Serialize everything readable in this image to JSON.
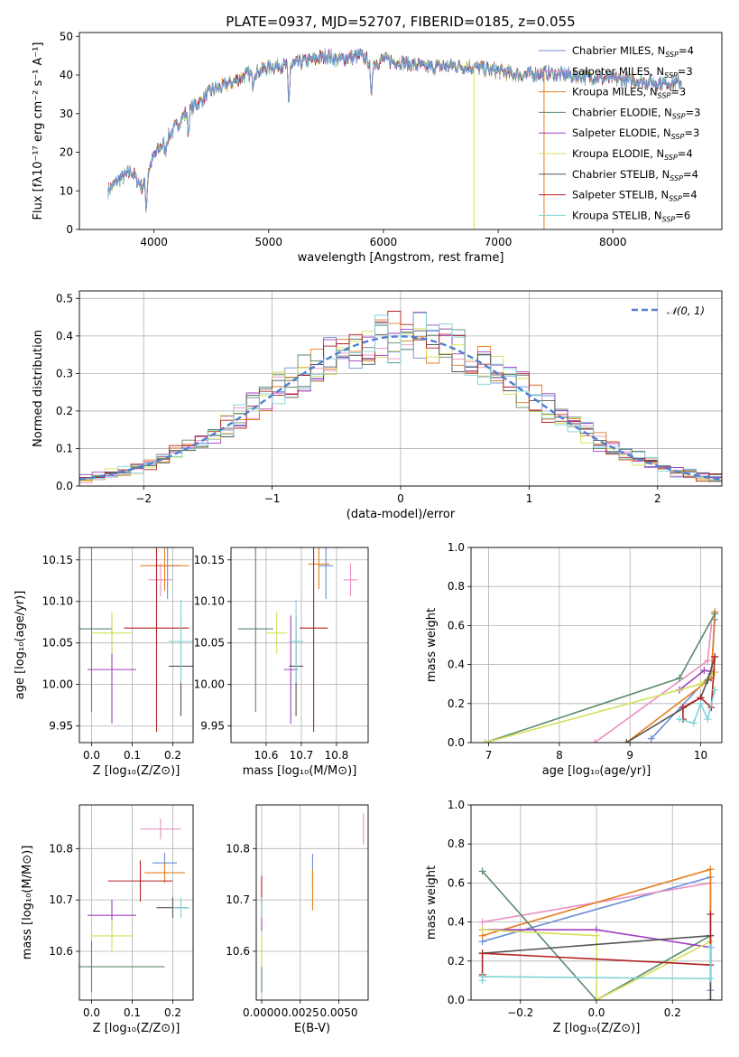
{
  "figure": {
    "title": "PLATE=0937, MJD=52707, FIBERID=0185, z=0.055"
  },
  "chart_data": [
    {
      "type": "line",
      "id": "spectrum",
      "xlabel": "wavelength [Angstrom, rest frame]",
      "ylabel": "Flux [fλ10⁻¹⁷ erg cm⁻² s⁻¹ A⁻¹]",
      "xlim": [
        3350,
        8950
      ],
      "ylim": [
        0,
        51
      ],
      "xticks": [
        4000,
        5000,
        6000,
        7000,
        8000
      ],
      "yticks": [
        0,
        10,
        20,
        30,
        40,
        50
      ],
      "grid": false,
      "legend_position": "upper-right",
      "continuum": {
        "x": [
          3600,
          3700,
          3800,
          3900,
          4000,
          4100,
          4200,
          4300,
          4400,
          4500,
          4600,
          4700,
          4800,
          4900,
          5000,
          5100,
          5200,
          5300,
          5400,
          5500,
          5600,
          5700,
          5800,
          5900,
          6000,
          6200,
          6400,
          6600,
          6800,
          7000,
          7200,
          7400,
          7600,
          7800,
          8000,
          8200,
          8400,
          8600
        ],
        "y": [
          10,
          13,
          15,
          11,
          19,
          23,
          27,
          31,
          33,
          36,
          37,
          38.5,
          40,
          41,
          42,
          42.5,
          42.5,
          43.5,
          44,
          45,
          44,
          44.5,
          45,
          43,
          44,
          43,
          42,
          42.5,
          42,
          41,
          40,
          40.5,
          40,
          39.5,
          39,
          38.5,
          38,
          38
        ]
      },
      "absorption_features": [
        {
          "x": 3933,
          "depth": 8
        },
        {
          "x": 4101,
          "depth": 3
        },
        {
          "x": 4300,
          "depth": 6
        },
        {
          "x": 4861,
          "depth": 3
        },
        {
          "x": 5175,
          "depth": 10
        },
        {
          "x": 5893,
          "depth": 9
        }
      ],
      "spikes": [
        {
          "series": "Kroupa ELODIE",
          "x": 6790,
          "to": 0
        },
        {
          "series": "Kroupa MILES",
          "x": 7400,
          "to": 0
        }
      ],
      "series": [
        {
          "name": "Chabrier MILES",
          "sub": "SSP",
          "suffix": "=4",
          "color": "#6a8ed6"
        },
        {
          "name": "Salpeter MILES",
          "sub": "SSP",
          "suffix": "=3",
          "color": "#e98fc3"
        },
        {
          "name": "Kroupa MILES",
          "sub": "SSP",
          "suffix": "=3",
          "color": "#e67e22"
        },
        {
          "name": "Chabrier ELODIE",
          "sub": "SSP",
          "suffix": "=3",
          "color": "#5a8a6a"
        },
        {
          "name": "Salpeter ELODIE",
          "sub": "SSP",
          "suffix": "=3",
          "color": "#a03fc0"
        },
        {
          "name": "Kroupa ELODIE",
          "sub": "SSP",
          "suffix": "=4",
          "color": "#d4e157"
        },
        {
          "name": "Chabrier STELIB",
          "sub": "SSP",
          "suffix": "=4",
          "color": "#555555"
        },
        {
          "name": "Salpeter STELIB",
          "sub": "SSP",
          "suffix": "=4",
          "color": "#b22222"
        },
        {
          "name": "Kroupa STELIB",
          "sub": "SSP",
          "suffix": "=6",
          "color": "#7fd3d8"
        }
      ]
    },
    {
      "type": "histogram",
      "id": "residuals",
      "xlabel": "(data-model)/error",
      "ylabel": "Normed distribution",
      "xlim": [
        -2.5,
        2.5
      ],
      "ylim": [
        0,
        0.52
      ],
      "xticks": [
        -2,
        -1,
        0,
        1,
        2
      ],
      "yticks": [
        0.0,
        0.1,
        0.2,
        0.3,
        0.4,
        0.5
      ],
      "grid": true,
      "bin_width": 0.1,
      "reference": {
        "label": "𝒩(0, 1)",
        "mean": 0,
        "sigma": 1,
        "color": "#4f7fd1",
        "style": "dashed"
      },
      "legend_position": "upper-right"
    },
    {
      "type": "scatter",
      "id": "age-vs-Z",
      "xlabel": "Z [log₁₀(Z/Z⊙)]",
      "ylabel": "age  [log₁₀(age/yr)]",
      "xlim": [
        -0.03,
        0.25
      ],
      "ylim": [
        9.93,
        10.165
      ],
      "xticks": [
        0.0,
        0.1,
        0.2
      ],
      "yticks": [
        9.95,
        10.0,
        10.05,
        10.1,
        10.15
      ],
      "grid": true,
      "points": [
        {
          "series": "Chabrier MILES",
          "x": 0.187,
          "y": 10.143,
          "xerr": 0.03,
          "yerr": 0.04
        },
        {
          "series": "Salpeter MILES",
          "x": 0.17,
          "y": 10.126,
          "xerr": 0.03,
          "yerr": 0.02
        },
        {
          "series": "Kroupa MILES",
          "x": 0.18,
          "y": 10.143,
          "xerr": 0.06,
          "yerr": 0.03
        },
        {
          "series": "Chabrier ELODIE",
          "x": 0.0,
          "y": 10.067,
          "xerr": 0.05,
          "yerr": 0.1
        },
        {
          "series": "Salpeter ELODIE",
          "x": 0.05,
          "y": 10.018,
          "xerr": 0.06,
          "yerr": 0.065
        },
        {
          "series": "Kroupa ELODIE",
          "x": 0.05,
          "y": 10.062,
          "xerr": 0.05,
          "yerr": 0.025
        },
        {
          "series": "Chabrier STELIB",
          "x": 0.22,
          "y": 10.022,
          "xerr": 0.03,
          "yerr": 0.06
        },
        {
          "series": "Salpeter STELIB",
          "x": 0.16,
          "y": 10.068,
          "xerr": 0.08,
          "yerr": 0.125
        },
        {
          "series": "Kroupa STELIB",
          "x": 0.22,
          "y": 10.052,
          "xerr": 0.03,
          "yerr": 0.05
        }
      ]
    },
    {
      "type": "scatter",
      "id": "age-vs-mass",
      "xlabel": "mass [log₁₀(M/M⊙)]",
      "ylabel": "",
      "xlim": [
        10.5,
        10.89
      ],
      "ylim": [
        9.93,
        10.165
      ],
      "xticks": [
        10.6,
        10.7,
        10.8
      ],
      "yticks": [
        9.95,
        10.0,
        10.05,
        10.1,
        10.15
      ],
      "grid": true,
      "points": [
        {
          "series": "Chabrier MILES",
          "x": 10.77,
          "y": 10.143,
          "xerr": 0.02,
          "yerr": 0.04
        },
        {
          "series": "Salpeter MILES",
          "x": 10.84,
          "y": 10.126,
          "xerr": 0.02,
          "yerr": 0.02
        },
        {
          "series": "Kroupa MILES",
          "x": 10.75,
          "y": 10.145,
          "xerr": 0.03,
          "yerr": 0.03
        },
        {
          "series": "Chabrier ELODIE",
          "x": 10.57,
          "y": 10.067,
          "xerr": 0.05,
          "yerr": 0.1
        },
        {
          "series": "Salpeter ELODIE",
          "x": 10.67,
          "y": 10.018,
          "xerr": 0.02,
          "yerr": 0.065
        },
        {
          "series": "Kroupa ELODIE",
          "x": 10.63,
          "y": 10.062,
          "xerr": 0.03,
          "yerr": 0.025
        },
        {
          "series": "Chabrier STELIB",
          "x": 10.685,
          "y": 10.022,
          "xerr": 0.02,
          "yerr": 0.06
        },
        {
          "series": "Salpeter STELIB",
          "x": 10.735,
          "y": 10.068,
          "xerr": 0.04,
          "yerr": 0.125
        },
        {
          "series": "Kroupa STELIB",
          "x": 10.685,
          "y": 10.052,
          "xerr": 0.02,
          "yerr": 0.05
        }
      ]
    },
    {
      "type": "line",
      "id": "weight-vs-age",
      "xlabel": "age  [log₁₀(age/yr)]",
      "ylabel": "mass weight",
      "xlim": [
        6.75,
        10.3
      ],
      "ylim": [
        0,
        1.0
      ],
      "xticks": [
        7,
        8,
        9,
        10
      ],
      "yticks": [
        0.0,
        0.2,
        0.4,
        0.6,
        0.8,
        1.0
      ],
      "grid": true,
      "series": [
        {
          "name": "Chabrier MILES",
          "points": [
            [
              9.3,
              0.02
            ],
            [
              10.15,
              0.35
            ],
            [
              10.2,
              0.63
            ]
          ]
        },
        {
          "name": "Salpeter MILES",
          "points": [
            [
              8.5,
              0.0
            ],
            [
              10.1,
              0.42
            ],
            [
              10.15,
              0.6
            ]
          ]
        },
        {
          "name": "Kroupa MILES",
          "points": [
            [
              8.95,
              0.0
            ],
            [
              10.15,
              0.33
            ],
            [
              10.2,
              0.67
            ]
          ]
        },
        {
          "name": "Chabrier ELODIE",
          "points": [
            [
              6.95,
              0.0
            ],
            [
              9.7,
              0.33
            ],
            [
              10.2,
              0.66
            ]
          ]
        },
        {
          "name": "Salpeter ELODIE",
          "points": [
            [
              9.7,
              0.27
            ],
            [
              10.05,
              0.37
            ],
            [
              10.2,
              0.36
            ]
          ]
        },
        {
          "name": "Kroupa ELODIE",
          "points": [
            [
              6.95,
              0.0
            ],
            [
              10.0,
              0.3
            ],
            [
              10.2,
              0.36
            ]
          ]
        },
        {
          "name": "Chabrier STELIB",
          "points": [
            [
              8.95,
              0.0
            ],
            [
              10.0,
              0.23
            ],
            [
              10.1,
              0.32
            ],
            [
              10.2,
              0.44
            ]
          ]
        },
        {
          "name": "Salpeter STELIB",
          "points": [
            [
              9.75,
              0.12
            ],
            [
              9.75,
              0.18
            ],
            [
              10.0,
              0.23
            ],
            [
              10.15,
              0.18
            ],
            [
              10.2,
              0.44
            ]
          ]
        },
        {
          "name": "Kroupa STELIB",
          "points": [
            [
              9.7,
              0.12
            ],
            [
              9.9,
              0.1
            ],
            [
              10.0,
              0.2
            ],
            [
              10.1,
              0.12
            ],
            [
              10.2,
              0.27
            ]
          ]
        }
      ]
    },
    {
      "type": "scatter",
      "id": "mass-vs-Z",
      "xlabel": "Z [log₁₀(Z/Z⊙)]",
      "ylabel": "mass [log₁₀(M/M⊙)]",
      "xlim": [
        -0.03,
        0.25
      ],
      "ylim": [
        10.505,
        10.885
      ],
      "xticks": [
        0.0,
        0.1,
        0.2
      ],
      "yticks": [
        10.6,
        10.7,
        10.8
      ],
      "grid": true,
      "points": [
        {
          "series": "Chabrier MILES",
          "x": 0.18,
          "y": 10.772,
          "xerr": 0.03,
          "yerr": 0.02
        },
        {
          "series": "Salpeter MILES",
          "x": 0.17,
          "y": 10.838,
          "xerr": 0.05,
          "yerr": 0.02
        },
        {
          "series": "Kroupa MILES",
          "x": 0.18,
          "y": 10.753,
          "xerr": 0.05,
          "yerr": 0.02
        },
        {
          "series": "Chabrier ELODIE",
          "x": 0.0,
          "y": 10.57,
          "xerr": 0.18,
          "yerr": 0.05
        },
        {
          "series": "Salpeter ELODIE",
          "x": 0.05,
          "y": 10.67,
          "xerr": 0.06,
          "yerr": 0.03
        },
        {
          "series": "Kroupa ELODIE",
          "x": 0.05,
          "y": 10.63,
          "xerr": 0.05,
          "yerr": 0.03
        },
        {
          "series": "Chabrier STELIB",
          "x": 0.2,
          "y": 10.685,
          "xerr": 0.04,
          "yerr": 0.02
        },
        {
          "series": "Salpeter STELIB",
          "x": 0.12,
          "y": 10.737,
          "xerr": 0.08,
          "yerr": 0.04
        },
        {
          "series": "Kroupa STELIB",
          "x": 0.22,
          "y": 10.685,
          "xerr": 0.02,
          "yerr": 0.02
        }
      ]
    },
    {
      "type": "scatter",
      "id": "mass-vs-EBV",
      "xlabel": "E(B-V)",
      "ylabel": "",
      "xlim": [
        -0.00035,
        0.0069
      ],
      "ylim": [
        10.505,
        10.885
      ],
      "xticks": [
        0.0,
        0.0025,
        0.005
      ],
      "xticklabels": [
        "0.0000",
        "0.0025",
        "0.0050"
      ],
      "yticks": [
        10.6,
        10.7,
        10.8
      ],
      "grid": true,
      "points": [
        {
          "series": "Chabrier MILES",
          "x": 0.0033,
          "y": 10.76,
          "xerr": 0,
          "yerr": 0.03
        },
        {
          "series": "Salpeter MILES",
          "x": 0.0066,
          "y": 10.838,
          "xerr": 0,
          "yerr": 0.03
        },
        {
          "series": "Kroupa MILES",
          "x": 0.0033,
          "y": 10.72,
          "xerr": 0,
          "yerr": 0.04
        },
        {
          "series": "Chabrier ELODIE",
          "x": 0.0,
          "y": 10.57,
          "xerr": 0,
          "yerr": 0.05
        },
        {
          "series": "Salpeter ELODIE",
          "x": 0.0,
          "y": 10.67,
          "xerr": 0,
          "yerr": 0.03
        },
        {
          "series": "Kroupa ELODIE",
          "x": 0.0,
          "y": 10.6,
          "xerr": 0,
          "yerr": 0.03
        },
        {
          "series": "Chabrier STELIB",
          "x": 0.0,
          "y": 10.685,
          "xerr": 0,
          "yerr": 0.02
        },
        {
          "series": "Salpeter STELIB",
          "x": 0.0,
          "y": 10.717,
          "xerr": 0,
          "yerr": 0.03
        },
        {
          "series": "Kroupa STELIB",
          "x": 0.0,
          "y": 10.685,
          "xerr": 0,
          "yerr": 0.02
        }
      ]
    },
    {
      "type": "line",
      "id": "weight-vs-Z",
      "xlabel": "Z [log₁₀(Z/Z⊙)]",
      "ylabel": "mass weight",
      "xlim": [
        -0.33,
        0.33
      ],
      "ylim": [
        0,
        1.0
      ],
      "xticks": [
        -0.2,
        0.0,
        0.2
      ],
      "yticks": [
        0.0,
        0.2,
        0.4,
        0.6,
        0.8,
        1.0
      ],
      "grid": true,
      "series": [
        {
          "name": "Chabrier MILES",
          "points": [
            [
              -0.3,
              0.3
            ],
            [
              0.3,
              0.63
            ],
            [
              0.3,
              0.05
            ]
          ]
        },
        {
          "name": "Salpeter MILES",
          "points": [
            [
              -0.3,
              0.4
            ],
            [
              0.3,
              0.6
            ]
          ]
        },
        {
          "name": "Kroupa MILES",
          "points": [
            [
              -0.3,
              0.33
            ],
            [
              0.3,
              0.67
            ],
            [
              0.3,
              0.0
            ]
          ]
        },
        {
          "name": "Chabrier ELODIE",
          "points": [
            [
              -0.3,
              0.66
            ],
            [
              0.0,
              0.0
            ],
            [
              0.3,
              0.33
            ]
          ]
        },
        {
          "name": "Salpeter ELODIE",
          "points": [
            [
              -0.3,
              0.36
            ],
            [
              0.0,
              0.36
            ],
            [
              0.3,
              0.27
            ]
          ]
        },
        {
          "name": "Kroupa ELODIE",
          "points": [
            [
              -0.3,
              0.36
            ],
            [
              0.0,
              0.33
            ],
            [
              0.0,
              0.0
            ],
            [
              0.3,
              0.3
            ]
          ]
        },
        {
          "name": "Chabrier STELIB",
          "points": [
            [
              -0.3,
              0.24
            ],
            [
              0.3,
              0.33
            ],
            [
              0.3,
              0.0
            ]
          ]
        },
        {
          "name": "Salpeter STELIB",
          "points": [
            [
              -0.3,
              0.13
            ],
            [
              -0.3,
              0.24
            ],
            [
              0.3,
              0.18
            ],
            [
              0.3,
              0.44
            ]
          ]
        },
        {
          "name": "Kroupa STELIB",
          "points": [
            [
              -0.3,
              0.1
            ],
            [
              -0.3,
              0.12
            ],
            [
              0.3,
              0.11
            ],
            [
              0.3,
              0.27
            ]
          ]
        }
      ]
    }
  ]
}
